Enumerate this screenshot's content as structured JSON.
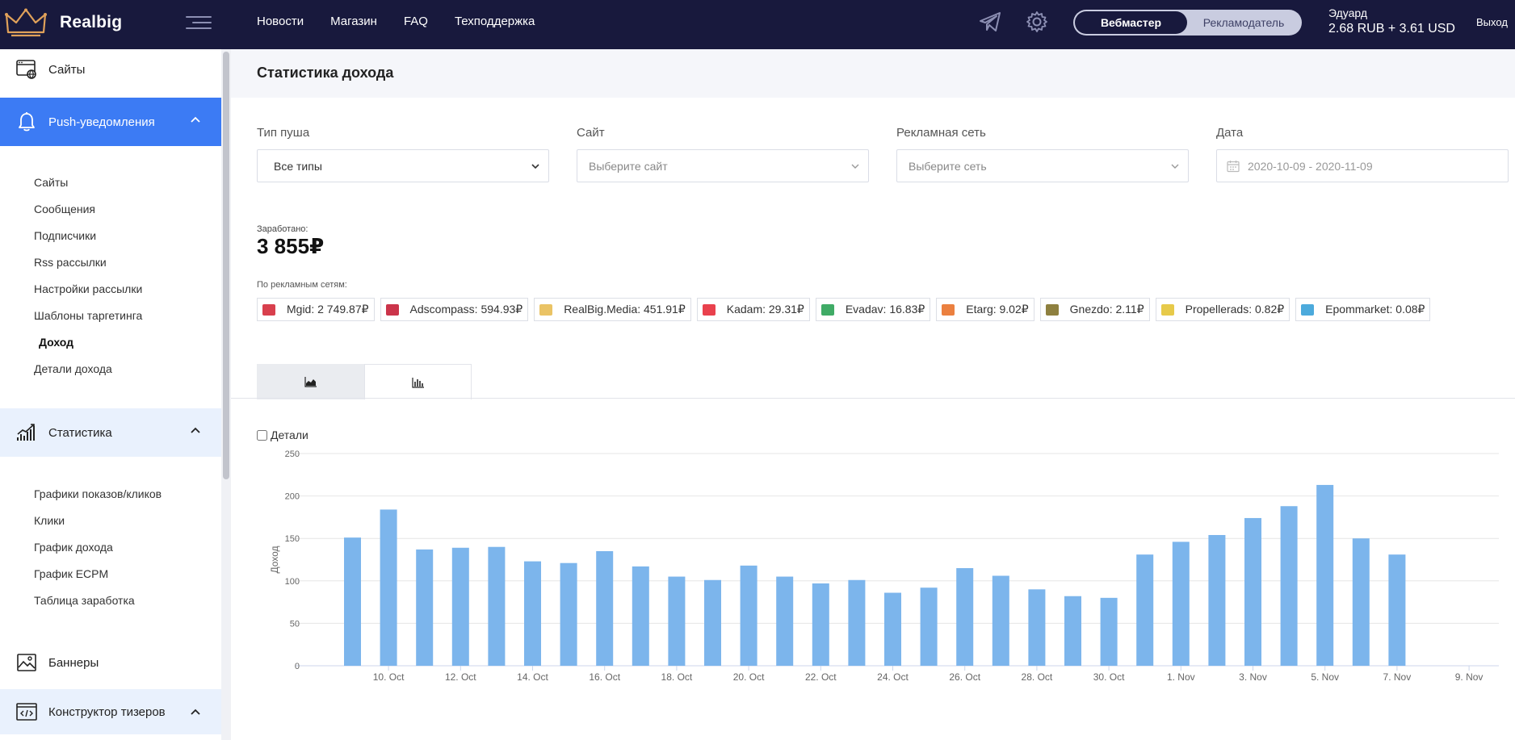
{
  "header": {
    "brand": "Realbig",
    "nav": [
      "Новости",
      "Магазин",
      "FAQ",
      "Техподдержка"
    ],
    "roles": {
      "active": "Вебмастер",
      "inactive": "Рекламодатель"
    },
    "user": {
      "name": "Эдуард",
      "balance": "2.68 RUB + 3.61 USD"
    },
    "logout": "Выход"
  },
  "sidebar": {
    "sites": "Сайты",
    "push": "Push-уведомления",
    "push_items": [
      "Сайты",
      "Сообщения",
      "Подписчики",
      "Rss рассылки",
      "Настройки рассылки",
      "Шаблоны таргетинга",
      "Доход",
      "Детали дохода"
    ],
    "stats": "Статистика",
    "stats_items": [
      "Графики показов/кликов",
      "Клики",
      "График дохода",
      "График ECPM",
      "Таблица заработка"
    ],
    "banners": "Баннеры",
    "teasers": "Конструктор тизеров"
  },
  "page": {
    "title": "Статистика дохода",
    "filters": {
      "push_type": {
        "label": "Тип пуша",
        "value": "Все типы"
      },
      "site": {
        "label": "Сайт",
        "placeholder": "Выберите сайт"
      },
      "network": {
        "label": "Рекламная сеть",
        "placeholder": "Выберите сеть"
      },
      "date": {
        "label": "Дата",
        "value": "2020-10-09 - 2020-11-09"
      }
    },
    "earned_label": "Заработано:",
    "earned_value": "3 855₽",
    "networks_label": "По рекламным сетям:",
    "networks": [
      {
        "text": "Mgid: 2 749.87₽",
        "color": "#d11f2e"
      },
      {
        "text": "Adscompass: 594.93₽",
        "color": "#c2102a"
      },
      {
        "text": "RealBig.Media: 451.91₽",
        "color": "#e6b94a"
      },
      {
        "text": "Kadam: 29.31₽",
        "color": "#e5202e"
      },
      {
        "text": "Evadav: 16.83₽",
        "color": "#1f9c4b"
      },
      {
        "text": "Etarg: 9.02₽",
        "color": "#e86a1e"
      },
      {
        "text": "Gnezdo: 2.11₽",
        "color": "#7a6a1d"
      },
      {
        "text": "Propellerads: 0.82₽",
        "color": "#e3c12a"
      },
      {
        "text": "Epommarket: 0.08₽",
        "color": "#2d9bd6"
      }
    ],
    "details_label": "Детали"
  },
  "chart_data": {
    "type": "bar",
    "ylabel": "Доход",
    "ylim": [
      0,
      250
    ],
    "yticks": [
      0,
      50,
      100,
      150,
      200,
      250
    ],
    "grid": true,
    "bar_color": "#7cb5ec",
    "x_tick_labels": [
      "10. Oct",
      "12. Oct",
      "14. Oct",
      "16. Oct",
      "18. Oct",
      "20. Oct",
      "22. Oct",
      "24. Oct",
      "26. Oct",
      "28. Oct",
      "30. Oct",
      "1. Nov",
      "3. Nov",
      "5. Nov",
      "7. Nov",
      "9. Nov"
    ],
    "categories": [
      "9. Oct",
      "10. Oct",
      "11. Oct",
      "12. Oct",
      "13. Oct",
      "14. Oct",
      "15. Oct",
      "16. Oct",
      "17. Oct",
      "18. Oct",
      "19. Oct",
      "20. Oct",
      "21. Oct",
      "22. Oct",
      "23. Oct",
      "24. Oct",
      "25. Oct",
      "26. Oct",
      "27. Oct",
      "28. Oct",
      "29. Oct",
      "30. Oct",
      "31. Oct",
      "1. Nov",
      "2. Nov",
      "3. Nov",
      "4. Nov",
      "5. Nov",
      "6. Nov",
      "7. Nov",
      "8. Nov",
      "9. Nov"
    ],
    "values": [
      151,
      184,
      137,
      139,
      140,
      123,
      121,
      135,
      117,
      105,
      101,
      118,
      105,
      97,
      101,
      86,
      92,
      115,
      106,
      90,
      82,
      80,
      131,
      146,
      154,
      174,
      188,
      213,
      150,
      131,
      0,
      0
    ]
  }
}
